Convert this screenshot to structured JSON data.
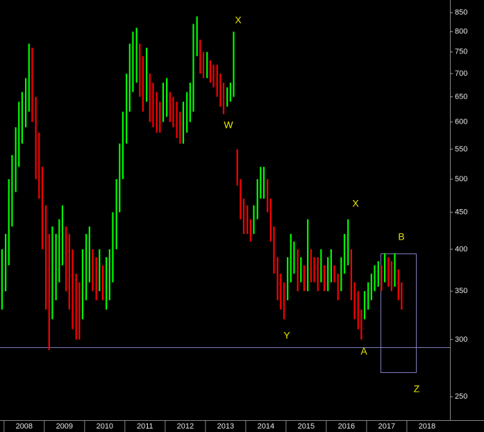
{
  "chart_data": {
    "type": "range-bar",
    "annotations": [
      "X",
      "W",
      "X",
      "Y",
      "B",
      "A",
      "Z"
    ],
    "up_color": "#00ff00",
    "down_color": "#ff0000",
    "log_scale": true,
    "xlim": [
      2007.9,
      2019.07
    ],
    "xticks": [
      2008,
      2009,
      2010,
      2011,
      2012,
      2013,
      2014,
      2015,
      2016,
      2017,
      2018
    ],
    "ylim": [
      232,
      885
    ],
    "yticks": [
      250,
      300,
      350,
      400,
      450,
      500,
      550,
      600,
      650,
      700,
      750,
      800,
      850
    ],
    "x": [
      2007.95,
      2008.04,
      2008.12,
      2008.2,
      2008.29,
      2008.37,
      2008.45,
      2008.54,
      2008.62,
      2008.7,
      2008.79,
      2008.87,
      2008.95,
      2009.04,
      2009.12,
      2009.2,
      2009.29,
      2009.37,
      2009.45,
      2009.54,
      2009.62,
      2009.7,
      2009.79,
      2009.87,
      2009.95,
      2010.04,
      2010.12,
      2010.2,
      2010.29,
      2010.37,
      2010.45,
      2010.54,
      2010.62,
      2010.7,
      2010.79,
      2010.87,
      2010.95,
      2011.04,
      2011.12,
      2011.2,
      2011.29,
      2011.37,
      2011.45,
      2011.54,
      2011.62,
      2011.7,
      2011.79,
      2011.87,
      2011.95,
      2012.04,
      2012.12,
      2012.2,
      2012.29,
      2012.37,
      2012.45,
      2012.54,
      2012.62,
      2012.7,
      2012.79,
      2012.87,
      2012.95,
      2013.04,
      2013.12,
      2013.2,
      2013.29,
      2013.37,
      2013.45,
      2013.54,
      2013.62,
      2013.7,
      2013.79,
      2013.87,
      2013.95,
      2014.04,
      2014.12,
      2014.2,
      2014.29,
      2014.37,
      2014.45,
      2014.54,
      2014.62,
      2014.7,
      2014.79,
      2014.87,
      2014.95,
      2015.04,
      2015.12,
      2015.2,
      2015.29,
      2015.37,
      2015.45,
      2015.54,
      2015.62,
      2015.7,
      2015.79,
      2015.87,
      2015.95,
      2016.04,
      2016.12,
      2016.2,
      2016.29,
      2016.37,
      2016.45,
      2016.54,
      2016.62,
      2016.7,
      2016.79,
      2016.87,
      2016.95,
      2017.04,
      2017.12,
      2017.2,
      2017.29,
      2017.37,
      2017.45,
      2017.54,
      2017.62,
      2017.7,
      2017.79,
      2017.87
    ],
    "low": [
      330,
      350,
      380,
      430,
      480,
      520,
      560,
      590,
      620,
      600,
      500,
      470,
      400,
      330,
      290,
      320,
      340,
      360,
      380,
      350,
      330,
      310,
      300,
      300,
      320,
      340,
      360,
      350,
      340,
      350,
      340,
      330,
      340,
      360,
      400,
      450,
      500,
      560,
      620,
      660,
      680,
      650,
      620,
      640,
      600,
      590,
      580,
      580,
      600,
      610,
      600,
      590,
      570,
      560,
      560,
      580,
      600,
      620,
      740,
      700,
      690,
      690,
      680,
      670,
      650,
      630,
      615,
      630,
      640,
      650,
      490,
      440,
      420,
      420,
      410,
      420,
      440,
      470,
      470,
      450,
      410,
      370,
      340,
      330,
      320,
      340,
      360,
      370,
      350,
      360,
      350,
      350,
      360,
      360,
      350,
      360,
      350,
      350,
      360,
      360,
      340,
      350,
      370,
      380,
      340,
      320,
      310,
      300,
      320,
      330,
      340,
      350,
      355,
      350,
      360,
      355,
      350,
      355,
      340,
      330
    ],
    "high": [
      400,
      420,
      500,
      540,
      590,
      640,
      660,
      690,
      770,
      760,
      650,
      580,
      520,
      460,
      420,
      430,
      420,
      440,
      460,
      430,
      420,
      400,
      370,
      360,
      400,
      420,
      430,
      400,
      390,
      400,
      380,
      390,
      400,
      450,
      500,
      560,
      620,
      700,
      770,
      800,
      810,
      770,
      740,
      760,
      700,
      680,
      660,
      640,
      680,
      690,
      660,
      650,
      640,
      620,
      640,
      660,
      680,
      820,
      840,
      780,
      750,
      750,
      730,
      720,
      720,
      700,
      680,
      670,
      680,
      800,
      550,
      500,
      470,
      460,
      440,
      460,
      500,
      520,
      520,
      500,
      470,
      430,
      390,
      370,
      360,
      390,
      420,
      410,
      400,
      390,
      380,
      440,
      400,
      390,
      390,
      400,
      380,
      390,
      400,
      380,
      370,
      390,
      420,
      440,
      400,
      360,
      350,
      330,
      350,
      360,
      370,
      380,
      385,
      380,
      395,
      390,
      385,
      395,
      375,
      360
    ]
  }
}
